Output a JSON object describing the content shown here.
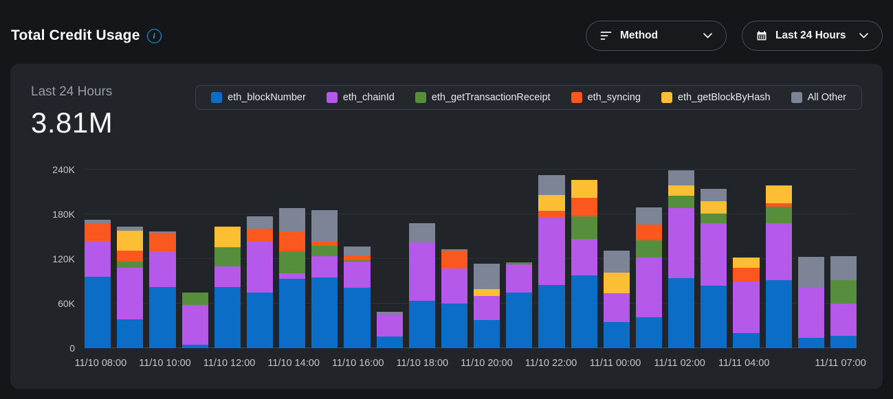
{
  "header": {
    "title": "Total Credit Usage",
    "controls": {
      "method": {
        "label": "Method"
      },
      "time_range": {
        "label": "Last 24 Hours"
      }
    }
  },
  "panel": {
    "period_label": "Last 24 Hours",
    "total": "3.81M"
  },
  "chart_data": {
    "type": "bar",
    "stacked": true,
    "title": "Total Credit Usage",
    "total_label": "3.81M",
    "period": "Last 24 Hours",
    "grid": true,
    "legend_position": "top-right",
    "ylim_k": [
      0,
      240
    ],
    "y_ticks": [
      {
        "v": 0,
        "label": "0"
      },
      {
        "v": 60,
        "label": "60K"
      },
      {
        "v": 120,
        "label": "120K"
      },
      {
        "v": 180,
        "label": "180K"
      },
      {
        "v": 240,
        "label": "240K"
      }
    ],
    "series_order": [
      "eth_blockNumber",
      "eth_chainId",
      "eth_getTransactionReceipt",
      "eth_syncing",
      "eth_getBlockByHash",
      "All Other"
    ],
    "colors": {
      "eth_blockNumber": "#0b6dc5",
      "eth_chainId": "#b459ea",
      "eth_getTransactionReceipt": "#568e3e",
      "eth_syncing": "#fb581f",
      "eth_getBlockByHash": "#fcbe32",
      "All Other": "#7d8495"
    },
    "x_tick_labels": [
      {
        "slot": 0,
        "label": "11/10 08:00"
      },
      {
        "slot": 2,
        "label": "11/10 10:00"
      },
      {
        "slot": 4,
        "label": "11/10 12:00"
      },
      {
        "slot": 6,
        "label": "11/10 14:00"
      },
      {
        "slot": 8,
        "label": "11/10 16:00"
      },
      {
        "slot": 10,
        "label": "11/10 18:00"
      },
      {
        "slot": 12,
        "label": "11/10 20:00"
      },
      {
        "slot": 14,
        "label": "11/10 22:00"
      },
      {
        "slot": 16,
        "label": "11/11 00:00"
      },
      {
        "slot": 18,
        "label": "11/11 02:00"
      },
      {
        "slot": 20,
        "label": "11/11 04:00"
      },
      {
        "slot": 23,
        "label": "11/11 07:00"
      }
    ],
    "values_unit": "K",
    "bars_k": [
      [
        96,
        48,
        0,
        23,
        0,
        6
      ],
      [
        39,
        69,
        8,
        15,
        27,
        5
      ],
      [
        82,
        47,
        0,
        26,
        0,
        2
      ],
      [
        5,
        53,
        17,
        0,
        0,
        0
      ],
      [
        82,
        28,
        26,
        0,
        27,
        0
      ],
      [
        75,
        68,
        0,
        18,
        0,
        16
      ],
      [
        93,
        8,
        29,
        27,
        0,
        31
      ],
      [
        95,
        29,
        14,
        6,
        0,
        42
      ],
      [
        81,
        35,
        2,
        7,
        0,
        12
      ],
      [
        16,
        29,
        0,
        0,
        0,
        4
      ],
      [
        64,
        78,
        0,
        0,
        0,
        26
      ],
      [
        60,
        47,
        0,
        24,
        0,
        2
      ],
      [
        38,
        32,
        0,
        0,
        9,
        35
      ],
      [
        75,
        38,
        2,
        0,
        0,
        0
      ],
      [
        85,
        91,
        0,
        9,
        21,
        27
      ],
      [
        98,
        49,
        30,
        25,
        24,
        0
      ],
      [
        35,
        39,
        0,
        0,
        28,
        29
      ],
      [
        42,
        80,
        23,
        21,
        0,
        23
      ],
      [
        94,
        94,
        17,
        0,
        14,
        20
      ],
      [
        84,
        84,
        13,
        0,
        17,
        16
      ],
      [
        20,
        70,
        0,
        18,
        14,
        0
      ],
      [
        91,
        77,
        22,
        5,
        24,
        0
      ],
      [
        14,
        68,
        0,
        0,
        0,
        41
      ],
      [
        17,
        43,
        31,
        0,
        0,
        33
      ]
    ]
  }
}
